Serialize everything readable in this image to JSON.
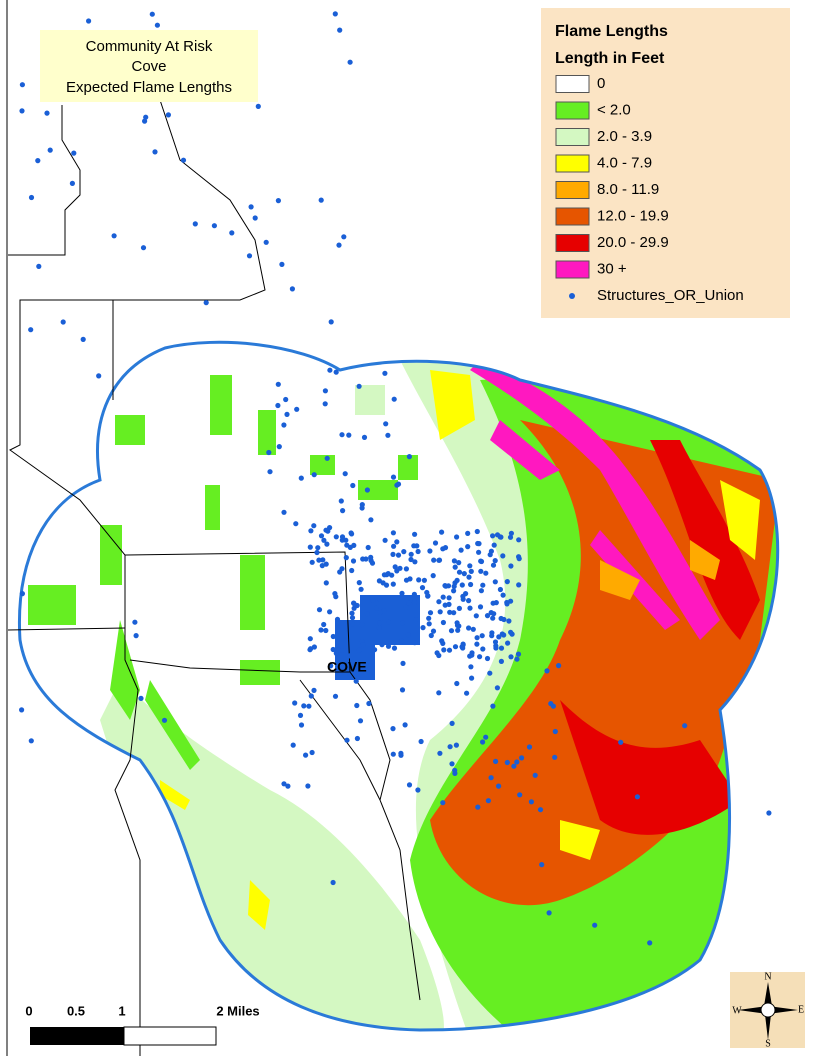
{
  "title_box": {
    "lines": [
      "Community At Risk",
      "Cove",
      "Expected Flame Lengths"
    ]
  },
  "legend": {
    "title": "Flame Lengths",
    "subtitle": "Length in Feet",
    "items": [
      {
        "label": "0",
        "color": "#ffffff"
      },
      {
        "label": "< 2.0",
        "color": "#66ee22"
      },
      {
        "label": "2.0 - 3.9",
        "color": "#d4f8c2"
      },
      {
        "label": "4.0 - 7.9",
        "color": "#ffff00"
      },
      {
        "label": "8.0 - 11.9",
        "color": "#ffaa00"
      },
      {
        "label": "12.0 - 19.9",
        "color": "#e65500"
      },
      {
        "label": "20.0 - 29.9",
        "color": "#e60000"
      },
      {
        "label": "30 +",
        "color": "#ff18c0"
      },
      {
        "label": "Structures_OR_Union",
        "color": "#1a5fd6",
        "symbol": "dot"
      }
    ]
  },
  "place_label": "COVE",
  "scale_bar": {
    "labels": [
      "0",
      "0.5",
      "1",
      "2 Miles"
    ]
  },
  "compass": {
    "n": "N",
    "s": "S",
    "e": "E",
    "w": "W"
  }
}
